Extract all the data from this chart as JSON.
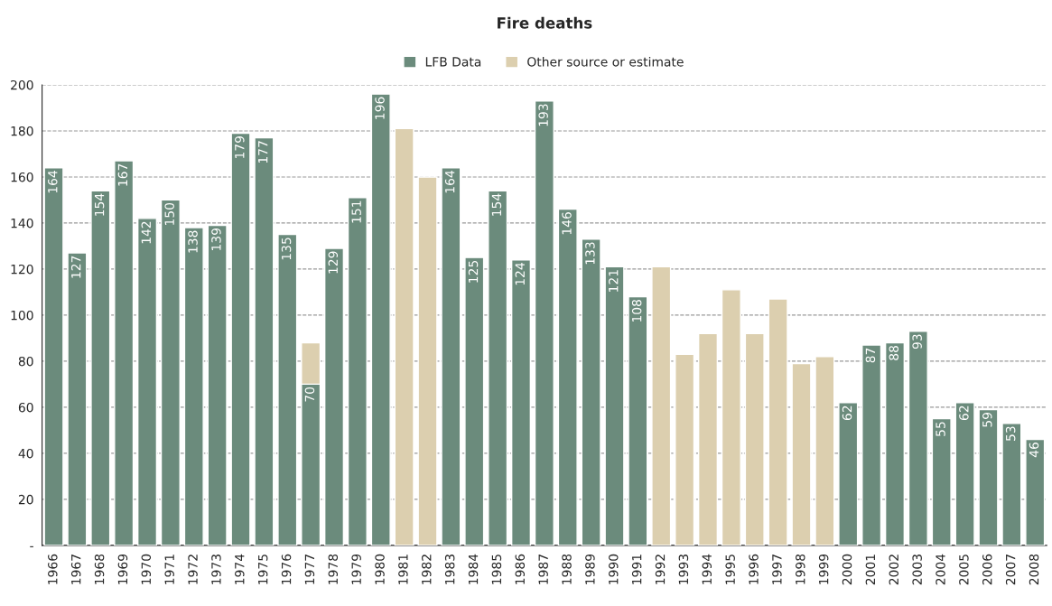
{
  "chart_data": {
    "type": "bar",
    "title": "Fire deaths",
    "stacked": true,
    "legend": "top",
    "grid": "y",
    "line_style": "dashed",
    "categories": [
      "1966",
      "1967",
      "1968",
      "1969",
      "1970",
      "1971",
      "1972",
      "1973",
      "1974",
      "1975",
      "1976",
      "1977",
      "1978",
      "1979",
      "1980",
      "1981",
      "1982",
      "1983",
      "1984",
      "1985",
      "1986",
      "1987",
      "1988",
      "1989",
      "1990",
      "1991",
      "1992",
      "1993",
      "1994",
      "1995",
      "1996",
      "1997",
      "1998",
      "1999",
      "2000",
      "2001",
      "2002",
      "2003",
      "2004",
      "2005",
      "2006",
      "2007",
      "2008"
    ],
    "series": [
      {
        "name": "LFB Data",
        "color": "#6b8b7c",
        "values": [
          164,
          127,
          154,
          167,
          142,
          150,
          138,
          139,
          179,
          177,
          135,
          70,
          129,
          151,
          196,
          null,
          null,
          164,
          125,
          154,
          124,
          193,
          146,
          133,
          121,
          108,
          null,
          null,
          null,
          null,
          null,
          null,
          null,
          null,
          62,
          87,
          88,
          93,
          55,
          62,
          59,
          53,
          46
        ],
        "value_labels": [
          "164",
          "127",
          "154",
          "167",
          "142",
          "150",
          "138",
          "139",
          "179",
          "177",
          "135",
          "70",
          "129",
          "151",
          "196",
          null,
          null,
          "164",
          "125",
          "154",
          "124",
          "193",
          "146",
          "133",
          "121",
          "108",
          null,
          null,
          null,
          null,
          null,
          null,
          null,
          null,
          "62",
          "87",
          "88",
          "93",
          "55",
          "62",
          "59",
          "53",
          "46"
        ]
      },
      {
        "name": "Other source or estimate",
        "color": "#dccfaf",
        "values": [
          null,
          null,
          null,
          null,
          null,
          null,
          null,
          null,
          null,
          null,
          null,
          18,
          null,
          null,
          null,
          181,
          160,
          null,
          null,
          null,
          null,
          null,
          null,
          null,
          null,
          null,
          121,
          83,
          92,
          111,
          92,
          107,
          79,
          82,
          null,
          null,
          null,
          null,
          null,
          null,
          null,
          null,
          null
        ]
      }
    ],
    "ylim": [
      0,
      200
    ],
    "yticks": [
      {
        "value": 0,
        "label": "-"
      },
      20,
      40,
      60,
      80,
      100,
      120,
      140,
      160,
      180,
      200
    ]
  }
}
